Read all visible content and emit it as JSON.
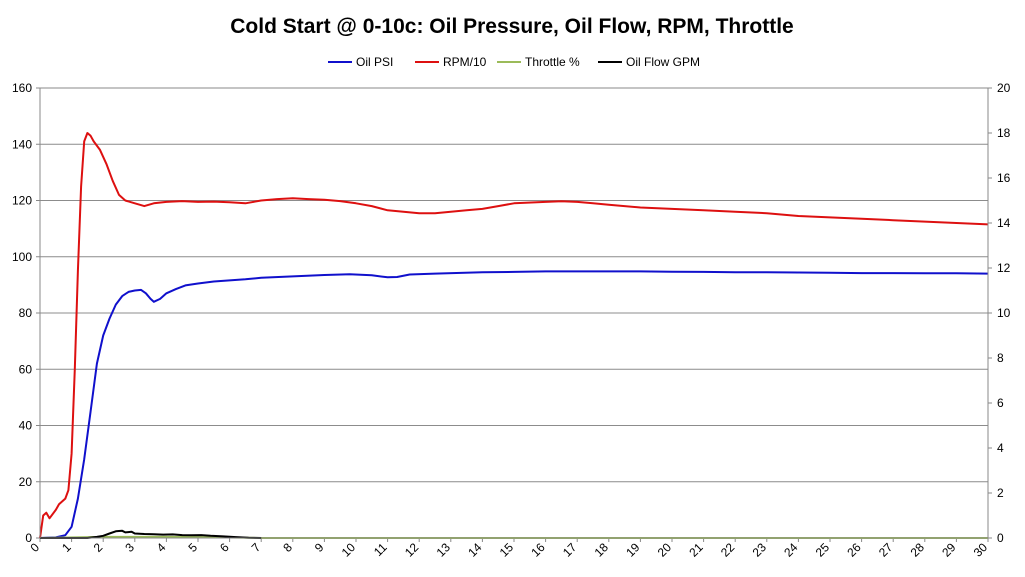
{
  "chart_data": {
    "type": "line",
    "title": "Cold Start @ 0-10c: Oil Pressure, Oil Flow, RPM, Throttle",
    "xlabel": "",
    "ylabel": "",
    "y2label": "",
    "xlim": [
      0,
      30
    ],
    "ylim": [
      0,
      160
    ],
    "y2lim": [
      0,
      20
    ],
    "x_ticks": [
      0,
      1,
      2,
      3,
      4,
      5,
      6,
      7,
      8,
      9,
      10,
      11,
      12,
      13,
      14,
      15,
      16,
      17,
      18,
      19,
      20,
      21,
      22,
      23,
      24,
      25,
      26,
      27,
      28,
      29,
      30
    ],
    "y_ticks": [
      0,
      20,
      40,
      60,
      80,
      100,
      120,
      140,
      160
    ],
    "y2_ticks": [
      0,
      2,
      4,
      6,
      8,
      10,
      12,
      14,
      16,
      18,
      20
    ],
    "grid": true,
    "legend_position": "top-center",
    "series": [
      {
        "name": "Oil PSI",
        "axis": "left",
        "color": "#1010cc",
        "points": [
          [
            0,
            0
          ],
          [
            0.5,
            0.2
          ],
          [
            0.8,
            1
          ],
          [
            1.0,
            4
          ],
          [
            1.2,
            14
          ],
          [
            1.4,
            28
          ],
          [
            1.6,
            45
          ],
          [
            1.8,
            62
          ],
          [
            2.0,
            72
          ],
          [
            2.2,
            78
          ],
          [
            2.4,
            83
          ],
          [
            2.6,
            86
          ],
          [
            2.8,
            87.5
          ],
          [
            3.0,
            88
          ],
          [
            3.2,
            88.2
          ],
          [
            3.35,
            87
          ],
          [
            3.5,
            85
          ],
          [
            3.6,
            84
          ],
          [
            3.8,
            85
          ],
          [
            4.0,
            87
          ],
          [
            4.3,
            88.5
          ],
          [
            4.6,
            89.8
          ],
          [
            5,
            90.5
          ],
          [
            5.5,
            91.2
          ],
          [
            6,
            91.6
          ],
          [
            6.5,
            92
          ],
          [
            7,
            92.5
          ],
          [
            8,
            93
          ],
          [
            9,
            93.5
          ],
          [
            9.8,
            93.8
          ],
          [
            10.5,
            93.4
          ],
          [
            11,
            92.7
          ],
          [
            11.3,
            92.8
          ],
          [
            11.7,
            93.7
          ],
          [
            12.5,
            94
          ],
          [
            14,
            94.5
          ],
          [
            15,
            94.6
          ],
          [
            16,
            94.8
          ],
          [
            17,
            94.8
          ],
          [
            18,
            94.8
          ],
          [
            19,
            94.8
          ],
          [
            20,
            94.7
          ],
          [
            21,
            94.6
          ],
          [
            22,
            94.5
          ],
          [
            23,
            94.5
          ],
          [
            24,
            94.4
          ],
          [
            25,
            94.3
          ],
          [
            26,
            94.2
          ],
          [
            27,
            94.2
          ],
          [
            28,
            94.1
          ],
          [
            29,
            94.1
          ],
          [
            30,
            94
          ]
        ]
      },
      {
        "name": "RPM/10",
        "axis": "left",
        "color": "#dd1010",
        "points": [
          [
            0,
            0
          ],
          [
            0.1,
            8
          ],
          [
            0.2,
            9
          ],
          [
            0.3,
            7
          ],
          [
            0.5,
            10
          ],
          [
            0.6,
            12
          ],
          [
            0.8,
            14
          ],
          [
            0.9,
            17
          ],
          [
            1.0,
            30
          ],
          [
            1.1,
            60
          ],
          [
            1.2,
            95
          ],
          [
            1.3,
            125
          ],
          [
            1.4,
            141
          ],
          [
            1.5,
            144
          ],
          [
            1.6,
            143
          ],
          [
            1.7,
            141
          ],
          [
            1.9,
            138
          ],
          [
            2.1,
            133
          ],
          [
            2.3,
            127
          ],
          [
            2.5,
            122
          ],
          [
            2.7,
            120
          ],
          [
            3.0,
            119
          ],
          [
            3.3,
            118
          ],
          [
            3.6,
            119
          ],
          [
            4.0,
            119.5
          ],
          [
            4.5,
            119.8
          ],
          [
            5,
            119.5
          ],
          [
            5.5,
            119.6
          ],
          [
            6,
            119.4
          ],
          [
            6.5,
            119.0
          ],
          [
            7,
            120
          ],
          [
            7.5,
            120.5
          ],
          [
            8,
            120.8
          ],
          [
            8.5,
            120.5
          ],
          [
            9,
            120.3
          ],
          [
            9.5,
            119.8
          ],
          [
            10,
            119
          ],
          [
            10.5,
            118
          ],
          [
            11,
            116.5
          ],
          [
            11.5,
            116
          ],
          [
            12,
            115.5
          ],
          [
            12.5,
            115.5
          ],
          [
            13,
            116
          ],
          [
            13.5,
            116.5
          ],
          [
            14,
            117
          ],
          [
            14.5,
            118
          ],
          [
            15,
            119
          ],
          [
            16,
            119.5
          ],
          [
            16.5,
            119.7
          ],
          [
            17,
            119.5
          ],
          [
            17.5,
            119
          ],
          [
            18,
            118.5
          ],
          [
            19,
            117.5
          ],
          [
            20,
            117
          ],
          [
            21,
            116.5
          ],
          [
            22,
            116
          ],
          [
            23,
            115.5
          ],
          [
            24,
            114.5
          ],
          [
            25,
            114
          ],
          [
            26,
            113.5
          ],
          [
            27,
            113
          ],
          [
            28,
            112.5
          ],
          [
            29,
            112
          ],
          [
            30,
            111.5
          ]
        ]
      },
      {
        "name": "Throttle %",
        "axis": "right",
        "color": "#9bbb59",
        "points": [
          [
            0,
            0
          ],
          [
            2,
            0.05
          ],
          [
            3,
            0.05
          ],
          [
            4,
            0.05
          ],
          [
            5,
            0.04
          ],
          [
            6,
            0.02
          ],
          [
            7,
            0
          ],
          [
            30,
            0
          ]
        ]
      },
      {
        "name": "Oil Flow GPM",
        "axis": "right",
        "color": "#000000",
        "points": [
          [
            0,
            0
          ],
          [
            1.5,
            0
          ],
          [
            1.8,
            0.05
          ],
          [
            2.0,
            0.1
          ],
          [
            2.2,
            0.2
          ],
          [
            2.4,
            0.3
          ],
          [
            2.6,
            0.32
          ],
          [
            2.7,
            0.25
          ],
          [
            2.9,
            0.28
          ],
          [
            3.0,
            0.2
          ],
          [
            3.3,
            0.18
          ],
          [
            3.6,
            0.17
          ],
          [
            3.9,
            0.15
          ],
          [
            4.2,
            0.16
          ],
          [
            4.5,
            0.13
          ],
          [
            4.8,
            0.12
          ],
          [
            5.1,
            0.13
          ],
          [
            5.4,
            0.1
          ],
          [
            5.8,
            0.07
          ],
          [
            6.2,
            0.04
          ],
          [
            6.6,
            0.01
          ],
          [
            7.0,
            0
          ]
        ]
      }
    ]
  }
}
